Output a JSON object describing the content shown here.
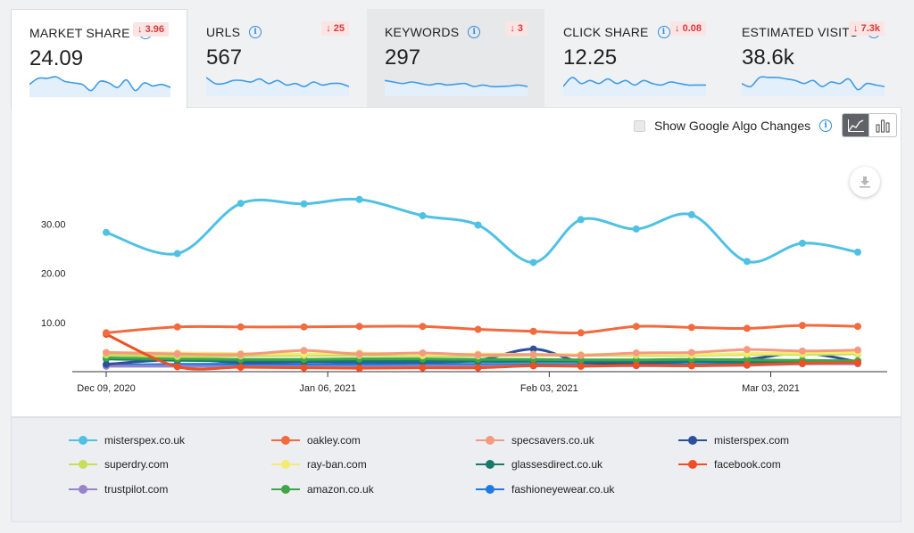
{
  "tabs": [
    {
      "title": "MARKET SHARE",
      "value": "24.09",
      "delta": "↓ 3.96",
      "spark": [
        4,
        2,
        2,
        1.5,
        3,
        3.5,
        4,
        6,
        3,
        3.5,
        5,
        2.5,
        6,
        3.5,
        4.5,
        4,
        5
      ]
    },
    {
      "title": "URLS",
      "value": "567",
      "delta": "↓ 25",
      "spark": [
        2,
        4,
        4,
        3,
        3,
        3.5,
        2.5,
        4,
        3,
        4.5,
        4,
        5,
        3.5,
        4.5,
        4,
        4,
        5
      ]
    },
    {
      "title": "KEYWORDS",
      "value": "297",
      "delta": "↓ 3",
      "spark": [
        3,
        3.5,
        4,
        3.5,
        4,
        4.5,
        4,
        4.5,
        4.2,
        4,
        5,
        4.5,
        5,
        5,
        4.8,
        4.5,
        5
      ]
    },
    {
      "title": "CLICK SHARE",
      "value": "12.25",
      "delta": "↓ 0.08",
      "spark": [
        5,
        2,
        4,
        3,
        4,
        2.5,
        4,
        3,
        4.5,
        3,
        4,
        4.5,
        3.5,
        4,
        4.5,
        4.5,
        4.5
      ]
    },
    {
      "title": "ESTIMATED VISITS",
      "value": "38.6k",
      "delta": "↓ 7.3k",
      "spark": [
        4,
        5,
        2,
        2,
        2,
        2.5,
        3,
        4,
        3,
        5,
        3.5,
        4,
        2.5,
        6,
        4,
        4.5,
        5
      ]
    }
  ],
  "toolbar": {
    "algo_label": "Show Google Algo Changes"
  },
  "chart_data": {
    "type": "line",
    "x": [
      "2020-12-09",
      "2020-12-18",
      "2020-12-26",
      "2021-01-03",
      "2021-01-10",
      "2021-01-18",
      "2021-01-25",
      "2021-02-01",
      "2021-02-07",
      "2021-02-14",
      "2021-02-21",
      "2021-02-28",
      "2021-03-07",
      "2021-03-14"
    ],
    "x_tick_labels": [
      "Dec 09, 2020",
      "Jan 06, 2021",
      "Feb 03, 2021",
      "Mar 03, 2021"
    ],
    "y_tick_labels": [
      "10.00",
      "20.00",
      "30.00"
    ],
    "ylim": [
      0,
      40
    ],
    "series": [
      {
        "name": "misterspex.co.uk",
        "color": "#4fc1e3",
        "values": [
          28.3,
          24.0,
          34.2,
          34.1,
          35.0,
          31.7,
          29.8,
          22.2,
          30.9,
          29.0,
          31.9,
          22.4,
          26.1,
          24.3
        ]
      },
      {
        "name": "oakley.com",
        "color": "#f26a3d",
        "values": [
          7.9,
          9.1,
          9.1,
          9.1,
          9.2,
          9.2,
          8.6,
          8.2,
          7.9,
          9.2,
          9.0,
          8.8,
          9.4,
          9.2
        ]
      },
      {
        "name": "specsavers.co.uk",
        "color": "#f59a80",
        "values": [
          3.9,
          3.6,
          3.5,
          4.3,
          3.6,
          3.8,
          3.4,
          3.5,
          3.3,
          3.8,
          3.9,
          4.5,
          4.2,
          4.4
        ]
      },
      {
        "name": "misterspex.com",
        "color": "#2e4f9c",
        "values": [
          1.5,
          2.5,
          1.9,
          2.0,
          2.0,
          2.0,
          2.3,
          4.6,
          2.0,
          1.8,
          2.1,
          2.5,
          3.8,
          2.0
        ]
      },
      {
        "name": "superdry.com",
        "color": "#c8dd5a",
        "values": [
          3.4,
          3.1,
          3.2,
          3.3,
          3.3,
          3.2,
          3.2,
          3.3,
          3.3,
          3.3,
          3.3,
          3.5,
          3.5,
          3.6
        ]
      },
      {
        "name": "ray-ban.com",
        "color": "#f3ec73",
        "values": [
          3.9,
          3.8,
          3.7,
          3.6,
          3.8,
          3.5,
          3.6,
          3.5,
          3.5,
          3.6,
          3.5,
          3.7,
          3.8,
          3.9
        ]
      },
      {
        "name": "glassesdirect.co.uk",
        "color": "#18796a",
        "values": [
          2.6,
          2.3,
          2.2,
          2.2,
          2.2,
          2.2,
          2.1,
          2.1,
          2.1,
          2.1,
          2.1,
          2.0,
          2.1,
          2.0
        ]
      },
      {
        "name": "facebook.com",
        "color": "#f04e23",
        "values": [
          7.6,
          1.0,
          0.9,
          0.8,
          0.7,
          0.8,
          0.8,
          1.2,
          1.1,
          1.3,
          1.2,
          1.4,
          1.7,
          1.8
        ]
      },
      {
        "name": "trustpilot.com",
        "color": "#9a84c9",
        "values": [
          1.1,
          1.1,
          1.0,
          1.0,
          1.0,
          1.1,
          1.1,
          1.2,
          1.2,
          1.2,
          1.2,
          1.3,
          1.6,
          1.6
        ]
      },
      {
        "name": "amazon.co.uk",
        "color": "#3ea648",
        "values": [
          2.8,
          2.6,
          2.5,
          2.5,
          2.6,
          2.6,
          2.5,
          2.5,
          2.4,
          2.4,
          2.5,
          2.4,
          2.3,
          2.2
        ]
      },
      {
        "name": "fashioneyewear.co.uk",
        "color": "#1f7be0",
        "values": [
          1.3,
          1.5,
          1.5,
          1.4,
          1.5,
          1.5,
          1.5,
          1.5,
          1.5,
          1.6,
          1.5,
          1.6,
          1.7,
          1.8
        ]
      }
    ],
    "grid": false,
    "legend_position": "bottom"
  }
}
